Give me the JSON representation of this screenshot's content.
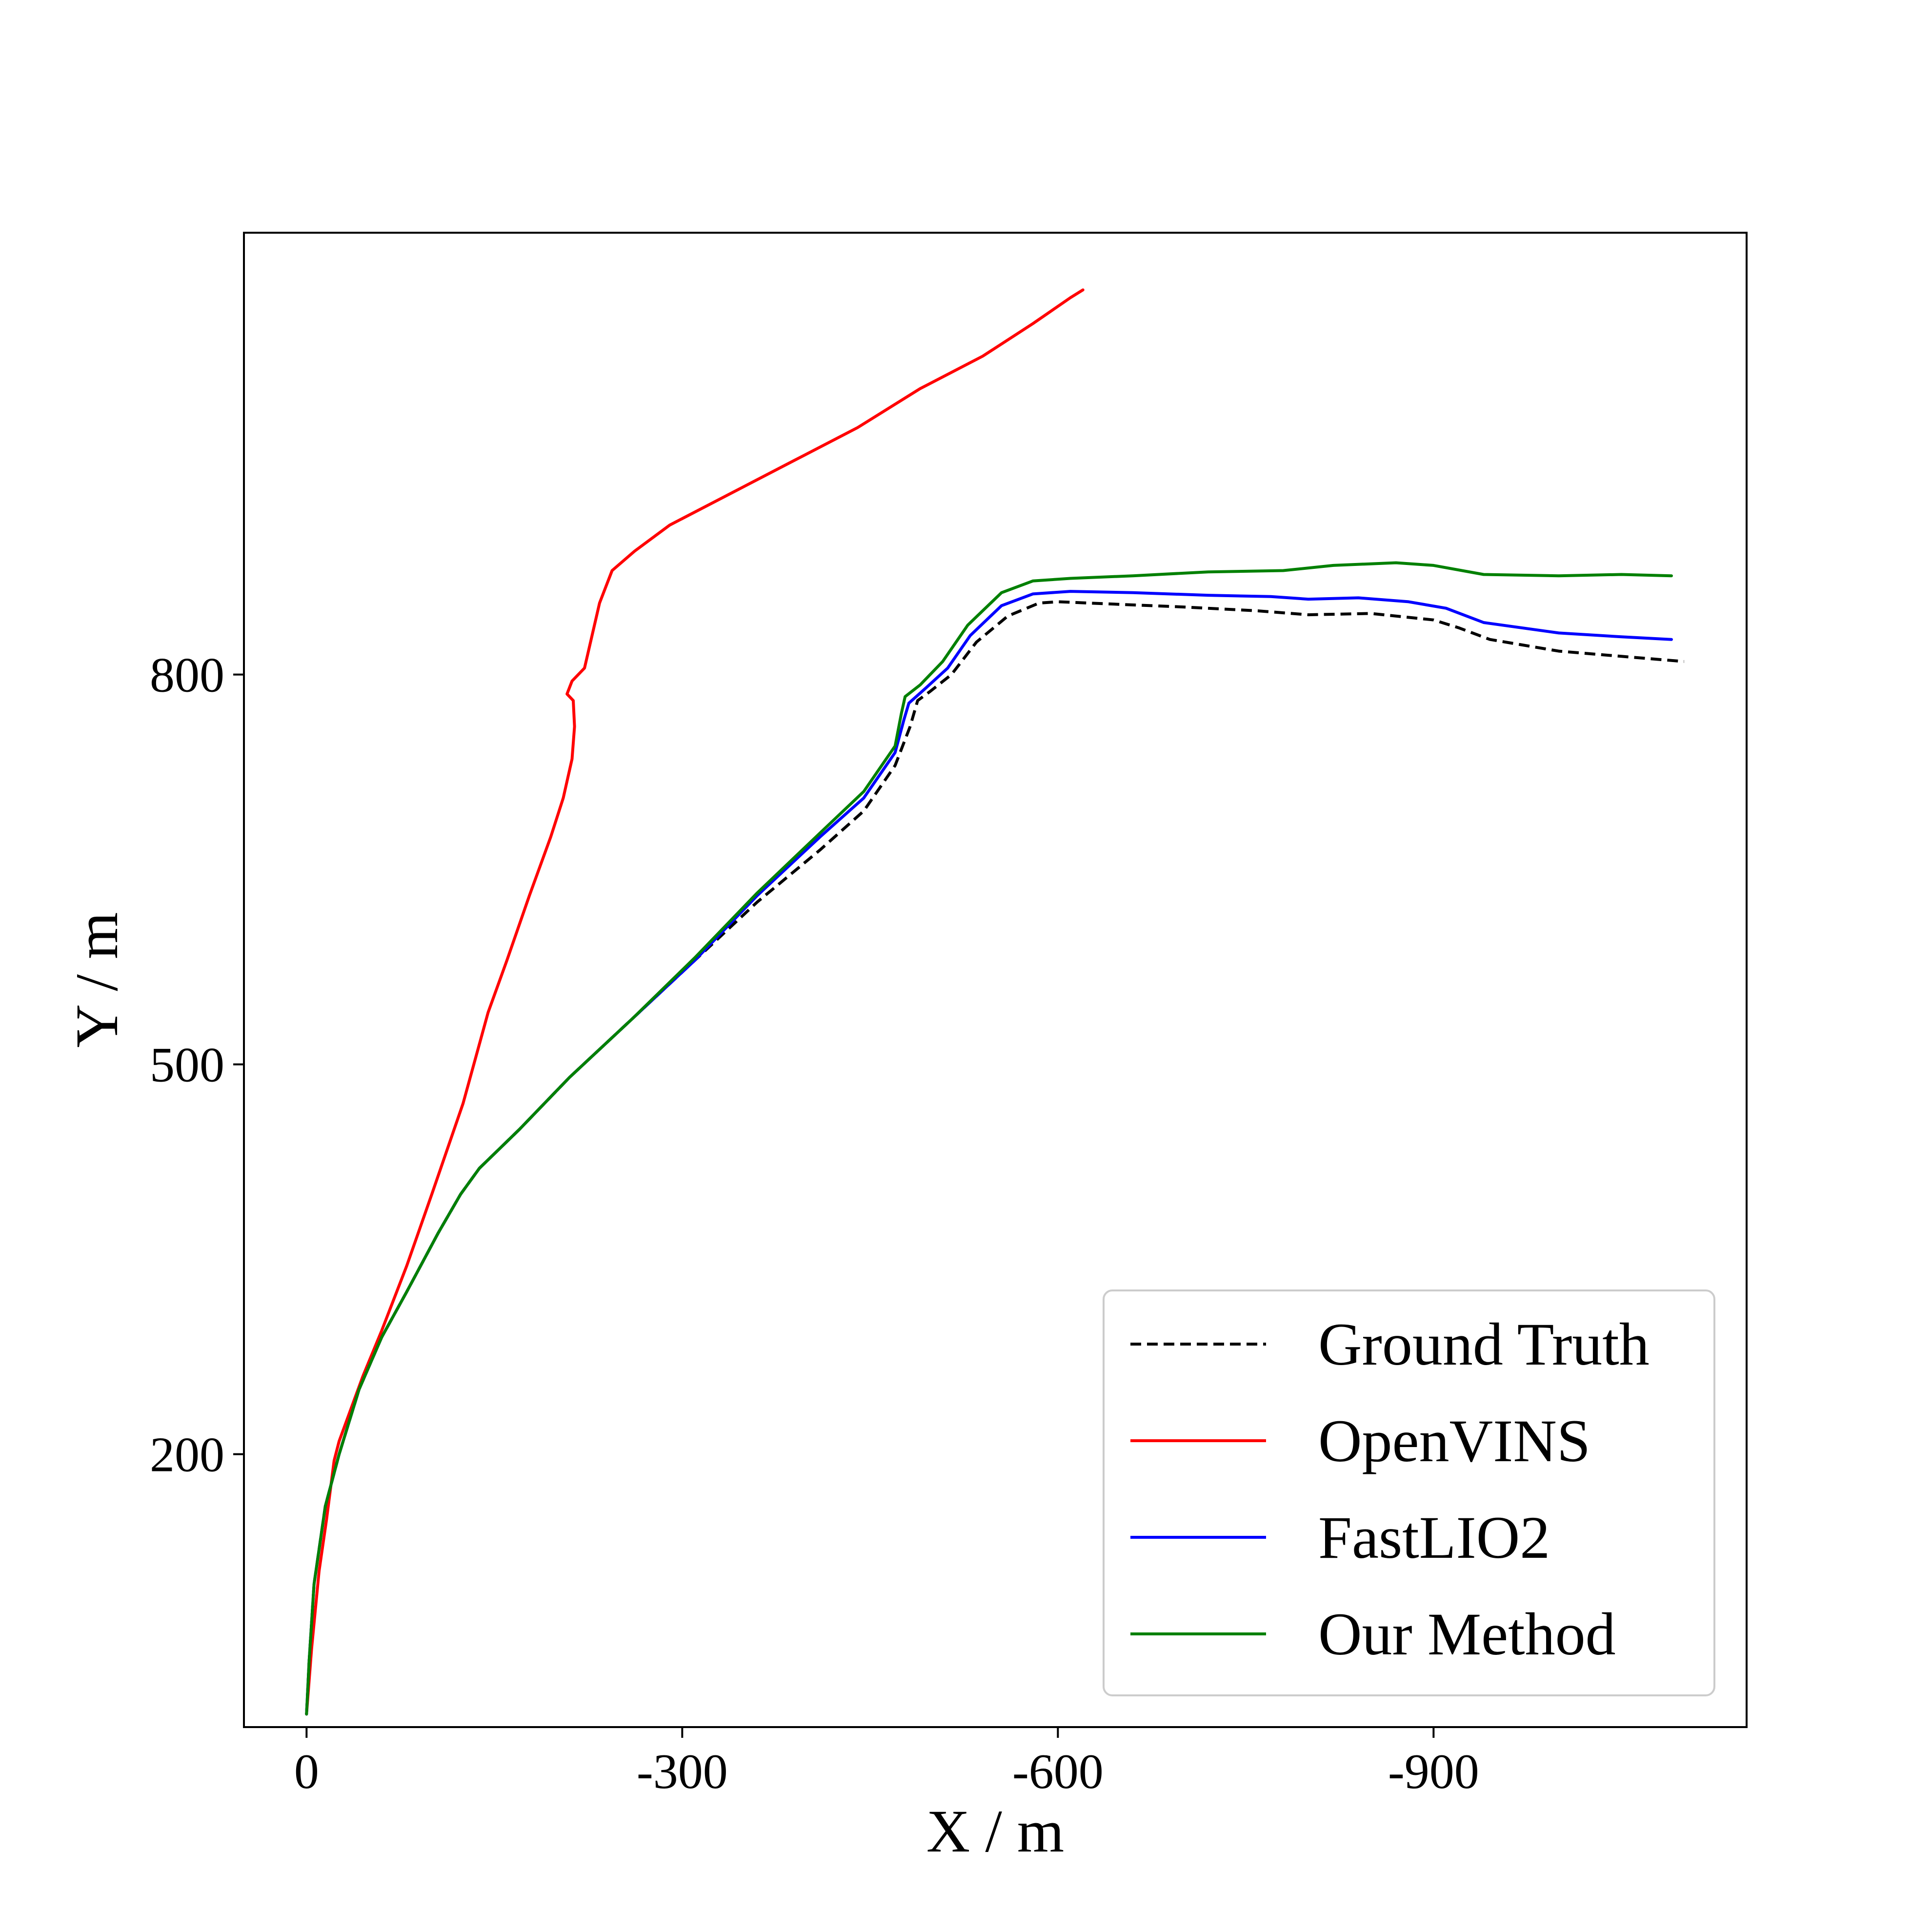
{
  "chart_data": {
    "type": "line",
    "title": "",
    "xlabel": "X / m",
    "ylabel": "Y / m",
    "xlim": [
      50,
      -1150
    ],
    "ylim": [
      -10,
      1140
    ],
    "xticks": [
      0,
      -300,
      -600,
      -900
    ],
    "yticks": [
      200,
      500,
      800
    ],
    "xtick_labels": [
      "0",
      "-300",
      "-600",
      "-900"
    ],
    "ytick_labels": [
      "200",
      "500",
      "800"
    ],
    "grid": false,
    "legend_position": "lower-right",
    "series": [
      {
        "name": "Ground Truth",
        "color": "#000000",
        "style": "dashed",
        "points": [
          [
            0,
            0
          ],
          [
            -2,
            40
          ],
          [
            -6,
            100
          ],
          [
            -15,
            160
          ],
          [
            -26,
            200
          ],
          [
            -42,
            250
          ],
          [
            -60,
            290
          ],
          [
            -80,
            325
          ],
          [
            -105,
            370
          ],
          [
            -123,
            400
          ],
          [
            -138,
            420
          ],
          [
            -170,
            450
          ],
          [
            -210,
            490
          ],
          [
            -260,
            535
          ],
          [
            -310,
            580
          ],
          [
            -360,
            625
          ],
          [
            -410,
            665
          ],
          [
            -445,
            695
          ],
          [
            -470,
            730
          ],
          [
            -482,
            760
          ],
          [
            -488,
            780
          ],
          [
            -498,
            787
          ],
          [
            -515,
            800
          ],
          [
            -535,
            825
          ],
          [
            -560,
            845
          ],
          [
            -585,
            855
          ],
          [
            -600,
            856
          ],
          [
            -650,
            854
          ],
          [
            -700,
            852
          ],
          [
            -760,
            849
          ],
          [
            -800,
            846
          ],
          [
            -850,
            847
          ],
          [
            -900,
            842
          ],
          [
            -920,
            836
          ],
          [
            -945,
            827
          ],
          [
            -1000,
            818
          ],
          [
            -1050,
            814
          ],
          [
            -1100,
            810
          ]
        ]
      },
      {
        "name": "OpenVINS",
        "color": "#ff0000",
        "style": "solid",
        "points": [
          [
            0,
            0
          ],
          [
            -4,
            50
          ],
          [
            -10,
            110
          ],
          [
            -16,
            150
          ],
          [
            -22,
            195
          ],
          [
            -26,
            210
          ],
          [
            -45,
            260
          ],
          [
            -60,
            295
          ],
          [
            -80,
            345
          ],
          [
            -100,
            400
          ],
          [
            -125,
            470
          ],
          [
            -145,
            540
          ],
          [
            -160,
            580
          ],
          [
            -178,
            630
          ],
          [
            -195,
            675
          ],
          [
            -205,
            705
          ],
          [
            -212,
            735
          ],
          [
            -214,
            760
          ],
          [
            -213,
            780
          ],
          [
            -208,
            785
          ],
          [
            -212,
            795
          ],
          [
            -222,
            805
          ],
          [
            -228,
            830
          ],
          [
            -234,
            855
          ],
          [
            -244,
            880
          ],
          [
            -262,
            895
          ],
          [
            -290,
            915
          ],
          [
            -340,
            940
          ],
          [
            -390,
            965
          ],
          [
            -440,
            990
          ],
          [
            -490,
            1020
          ],
          [
            -540,
            1045
          ],
          [
            -580,
            1070
          ],
          [
            -610,
            1090
          ],
          [
            -620,
            1096
          ]
        ]
      },
      {
        "name": "FastLIO2",
        "color": "#0000ff",
        "style": "solid",
        "points": [
          [
            0,
            0
          ],
          [
            -2,
            40
          ],
          [
            -6,
            100
          ],
          [
            -15,
            160
          ],
          [
            -26,
            200
          ],
          [
            -42,
            250
          ],
          [
            -60,
            290
          ],
          [
            -80,
            325
          ],
          [
            -105,
            370
          ],
          [
            -123,
            400
          ],
          [
            -138,
            420
          ],
          [
            -170,
            450
          ],
          [
            -210,
            490
          ],
          [
            -260,
            535
          ],
          [
            -310,
            580
          ],
          [
            -360,
            630
          ],
          [
            -410,
            675
          ],
          [
            -445,
            705
          ],
          [
            -470,
            740
          ],
          [
            -477,
            765
          ],
          [
            -481,
            778
          ],
          [
            -495,
            790
          ],
          [
            -512,
            805
          ],
          [
            -530,
            830
          ],
          [
            -555,
            853
          ],
          [
            -580,
            862
          ],
          [
            -610,
            864
          ],
          [
            -660,
            863
          ],
          [
            -720,
            861
          ],
          [
            -770,
            860
          ],
          [
            -800,
            858
          ],
          [
            -840,
            859
          ],
          [
            -880,
            856
          ],
          [
            -910,
            851
          ],
          [
            -940,
            840
          ],
          [
            -1000,
            832
          ],
          [
            -1050,
            829
          ],
          [
            -1090,
            827
          ]
        ]
      },
      {
        "name": "Our Method",
        "color": "#008000",
        "style": "solid",
        "points": [
          [
            0,
            0
          ],
          [
            -2,
            40
          ],
          [
            -6,
            100
          ],
          [
            -15,
            160
          ],
          [
            -26,
            200
          ],
          [
            -42,
            250
          ],
          [
            -60,
            290
          ],
          [
            -80,
            325
          ],
          [
            -105,
            370
          ],
          [
            -123,
            400
          ],
          [
            -138,
            420
          ],
          [
            -170,
            450
          ],
          [
            -210,
            490
          ],
          [
            -260,
            535
          ],
          [
            -310,
            582
          ],
          [
            -360,
            632
          ],
          [
            -410,
            678
          ],
          [
            -445,
            710
          ],
          [
            -470,
            745
          ],
          [
            -475,
            770
          ],
          [
            -478,
            783
          ],
          [
            -490,
            792
          ],
          [
            -508,
            810
          ],
          [
            -528,
            838
          ],
          [
            -555,
            863
          ],
          [
            -580,
            872
          ],
          [
            -610,
            874
          ],
          [
            -660,
            876
          ],
          [
            -720,
            879
          ],
          [
            -780,
            880
          ],
          [
            -820,
            884
          ],
          [
            -870,
            886
          ],
          [
            -900,
            884
          ],
          [
            -940,
            877
          ],
          [
            -1000,
            876
          ],
          [
            -1050,
            877
          ],
          [
            -1090,
            876
          ]
        ]
      }
    ]
  }
}
